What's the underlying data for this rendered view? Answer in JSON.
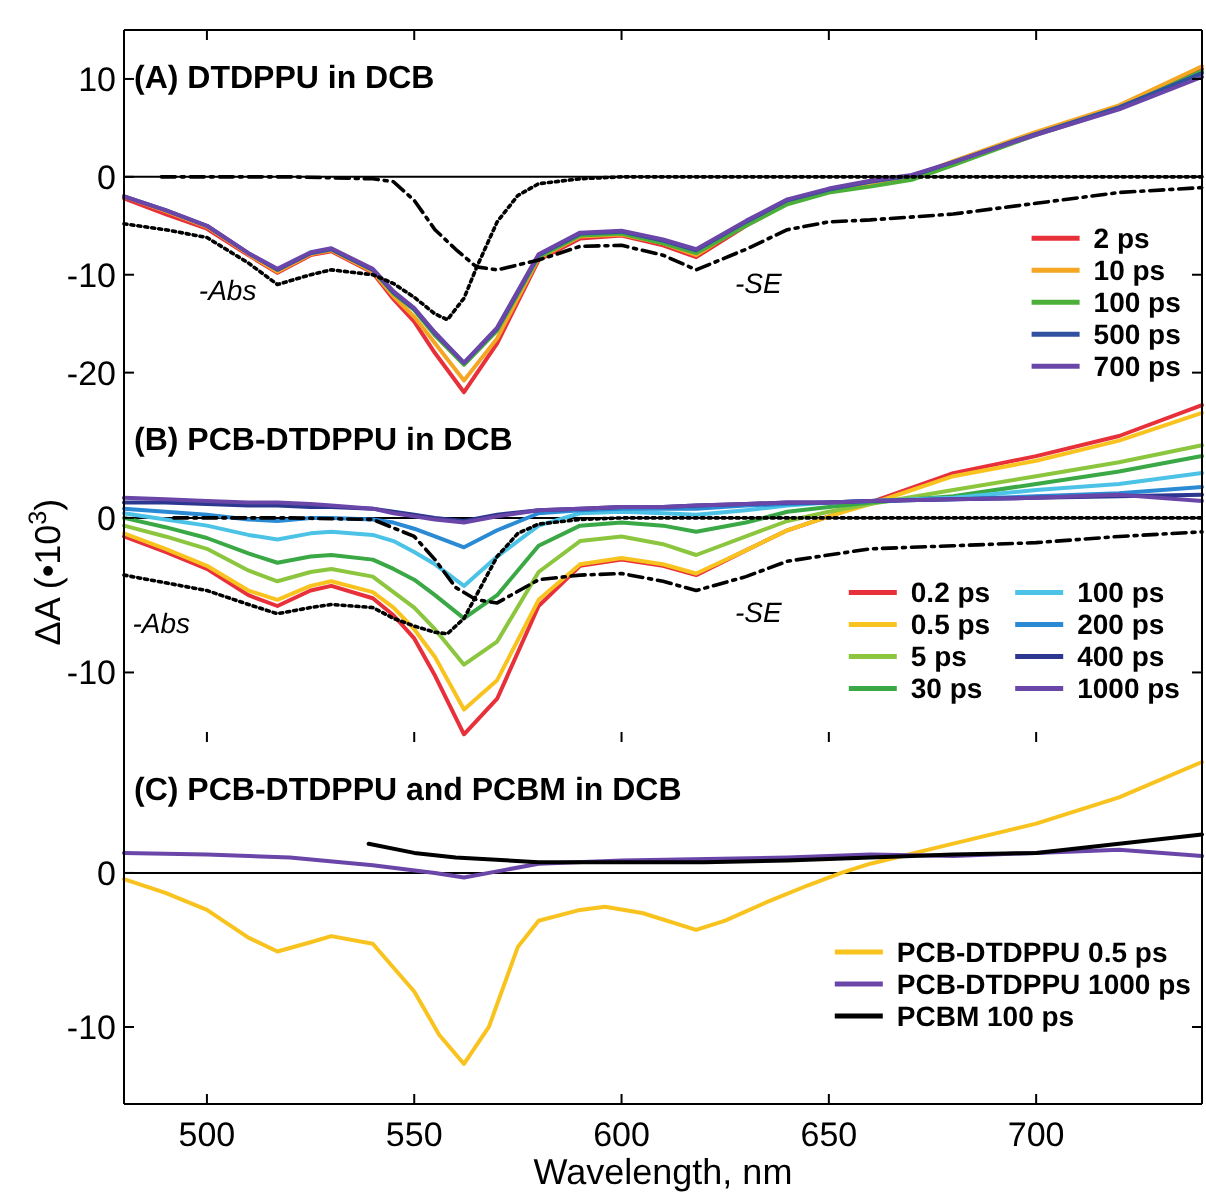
{
  "chart_data": [
    {
      "type": "line",
      "title": "(A) DTDPPU in DCB",
      "x": [
        480,
        490,
        500,
        510,
        517,
        525,
        530,
        540,
        545,
        550,
        555,
        562,
        570,
        580,
        590,
        600,
        610,
        618,
        630,
        640,
        650,
        660,
        670,
        680,
        700,
        720,
        740
      ],
      "xlim": [
        480,
        740
      ],
      "xticks": [
        500,
        550,
        600,
        650,
        700
      ],
      "ylim": [
        -23,
        15
      ],
      "yticks": [
        -20,
        -10,
        0,
        10
      ],
      "tick_labels": "y",
      "grid": false,
      "legend": "right",
      "ref_lines": [
        {
          "axis": "y",
          "value": 0,
          "color": "#000000"
        }
      ],
      "annotations": [
        {
          "text": "-Abs",
          "x": 505,
          "y": -7.5
        },
        {
          "text": "-SE",
          "x": 633,
          "y": -6.8
        }
      ],
      "series": [
        {
          "name": "2 ps",
          "color": "#e8303a",
          "values": [
            -2.2,
            -3.8,
            -5.3,
            -8,
            -9.8,
            -8,
            -7.6,
            -9.8,
            -12.5,
            -14.8,
            -18,
            -22,
            -17,
            -8.5,
            -6.3,
            -6,
            -7,
            -8.2,
            -5,
            -2.7,
            -1.5,
            -0.6,
            0,
            1.5,
            4.5,
            7.2,
            11
          ]
        },
        {
          "name": "10 ps",
          "color": "#f5a623",
          "values": [
            -2,
            -3.5,
            -5.1,
            -7.9,
            -9.7,
            -7.9,
            -7.5,
            -9.7,
            -12.2,
            -14.3,
            -17,
            -20.8,
            -16.5,
            -8.3,
            -6.1,
            -5.9,
            -6.8,
            -8,
            -4.8,
            -2.6,
            -1.4,
            -0.6,
            0,
            1.6,
            4.6,
            7.3,
            11.3
          ]
        },
        {
          "name": "100 ps",
          "color": "#4caf3a",
          "values": [
            null,
            null,
            null,
            null,
            null,
            null,
            -7.4,
            -9.5,
            -11.9,
            -13.6,
            -16.2,
            -19.2,
            -15.7,
            -8.2,
            -6,
            -5.8,
            -6.8,
            -7.8,
            -5,
            -2.8,
            -1.6,
            -1,
            -0.3,
            1.2,
            4.3,
            7,
            10.8
          ]
        },
        {
          "name": "500 ps",
          "color": "#3050a0",
          "values": [
            -2,
            -3.4,
            -5,
            -7.8,
            -9.5,
            -7.8,
            -7.4,
            -9.5,
            -11.8,
            -13.5,
            -16,
            -19,
            -15.5,
            -8,
            -5.8,
            -5.6,
            -6.5,
            -7.5,
            -4.6,
            -2.4,
            -1.3,
            -0.5,
            0.1,
            1.5,
            4.4,
            7.1,
            10.6
          ]
        },
        {
          "name": "700 ps",
          "color": "#6a46a8",
          "values": [
            -2,
            -3.4,
            -5,
            -7.8,
            -9.4,
            -7.7,
            -7.3,
            -9.4,
            -11.7,
            -13.4,
            -15.9,
            -19,
            -15.4,
            -7.9,
            -5.7,
            -5.5,
            -6.4,
            -7.4,
            -4.5,
            -2.3,
            -1.2,
            -0.4,
            0.2,
            1.5,
            4.3,
            6.9,
            10.2
          ]
        },
        {
          "color": "#000000",
          "line_style": "dotted",
          "x": [
            480,
            490,
            500,
            510,
            517,
            525,
            530,
            540,
            545,
            550,
            555,
            558,
            562,
            565,
            570,
            575,
            580,
            590,
            600,
            650,
            700,
            740
          ],
          "values": [
            -4.8,
            -5.4,
            -6.2,
            -8.8,
            -11,
            -10,
            -9.5,
            -10,
            -10.9,
            -12.3,
            -14,
            -14.6,
            -12.4,
            -9.3,
            -4.6,
            -1.9,
            -0.7,
            -0.2,
            0,
            0,
            0,
            0
          ]
        },
        {
          "color": "#000000",
          "line_style": "dashed",
          "x": [
            489,
            500,
            520,
            540,
            545,
            550,
            555,
            560,
            565,
            570,
            580,
            590,
            600,
            610,
            618,
            630,
            640,
            650,
            660,
            680,
            700,
            720,
            740
          ],
          "values": [
            0,
            0,
            0,
            -0.2,
            -0.5,
            -2.4,
            -5.4,
            -7.4,
            -9.2,
            -9.5,
            -8.5,
            -7.1,
            -7,
            -8,
            -9.5,
            -7.4,
            -5.4,
            -4.6,
            -4.4,
            -3.8,
            -2.7,
            -1.6,
            -1.1
          ]
        }
      ]
    },
    {
      "type": "line",
      "title": "(B) PCB-DTDPPU in DCB",
      "ylabel": "ΔA (•10$^{3}$)",
      "x": [
        480,
        490,
        500,
        510,
        517,
        525,
        530,
        540,
        545,
        550,
        555,
        562,
        570,
        580,
        590,
        600,
        610,
        618,
        630,
        640,
        650,
        660,
        680,
        700,
        720,
        740
      ],
      "xlim": [
        480,
        740
      ],
      "xticks": [
        500,
        550,
        600,
        650,
        700
      ],
      "ylim": [
        -14.5,
        7.5
      ],
      "yticks": [
        -10,
        0
      ],
      "tick_labels": "y",
      "grid": false,
      "legend": "right",
      "ref_lines": [
        {
          "axis": "y",
          "value": 0,
          "color": "#000000"
        }
      ],
      "annotations": [
        {
          "text": "-Abs",
          "x": 489,
          "y": -4.2
        },
        {
          "text": "-SE",
          "x": 633,
          "y": -3.5
        }
      ],
      "series": [
        {
          "name": "0.2 ps",
          "color": "#e8303a",
          "values": [
            -1.2,
            -2.2,
            -3.3,
            -5,
            -5.7,
            -4.7,
            -4.4,
            -5.2,
            -6.3,
            -7.8,
            -10.2,
            -14,
            -11.7,
            -5.7,
            -3.1,
            -2.7,
            -3.1,
            -3.7,
            -2.1,
            -0.8,
            0.1,
            1,
            2.9,
            4,
            5.3,
            7.3
          ]
        },
        {
          "name": "0.5 ps",
          "color": "#f9c31f",
          "values": [
            -1,
            -2,
            -3.1,
            -4.7,
            -5.3,
            -4.4,
            -4.1,
            -4.8,
            -5.8,
            -7.2,
            -9,
            -12.4,
            -10.5,
            -5.3,
            -3,
            -2.6,
            -3,
            -3.6,
            -2.1,
            -0.8,
            0.1,
            0.9,
            2.7,
            3.7,
            5,
            6.8
          ]
        },
        {
          "name": "5 ps",
          "color": "#8cc63e",
          "values": [
            -0.5,
            -1.2,
            -2,
            -3.4,
            -4.1,
            -3.5,
            -3.3,
            -3.8,
            -4.8,
            -5.8,
            -7.2,
            -9.5,
            -8,
            -3.5,
            -1.5,
            -1.2,
            -1.7,
            -2.4,
            -1.2,
            -0.2,
            0.4,
            0.9,
            1.8,
            2.7,
            3.6,
            4.7
          ]
        },
        {
          "name": "30 ps",
          "color": "#3aa845",
          "values": [
            0,
            -0.6,
            -1.3,
            -2.3,
            -2.9,
            -2.5,
            -2.4,
            -2.7,
            -3.3,
            -4,
            -5,
            -6.5,
            -5,
            -1.8,
            -0.5,
            -0.3,
            -0.5,
            -0.9,
            -0.3,
            0.4,
            0.7,
            1,
            1.4,
            2.2,
            3,
            4
          ]
        },
        {
          "name": "100 ps",
          "color": "#4cc3e6",
          "values": [
            0.3,
            -0.1,
            -0.5,
            -1.1,
            -1.4,
            -1,
            -0.9,
            -1.1,
            -1.5,
            -2.2,
            -3,
            -4.4,
            -2.5,
            -0.5,
            0.3,
            0.4,
            0.3,
            0.2,
            0.5,
            0.8,
            1,
            1.1,
            1.3,
            1.8,
            2.2,
            2.9
          ]
        },
        {
          "name": "200 ps",
          "color": "#2a8ad4",
          "values": [
            0.6,
            0.4,
            0.2,
            -0.1,
            -0.2,
            0,
            0,
            -0.1,
            -0.3,
            -0.7,
            -1.2,
            -1.9,
            -0.8,
            0.3,
            0.5,
            0.6,
            0.6,
            0.6,
            0.8,
            0.9,
            1,
            1.1,
            1.2,
            1.4,
            1.6,
            2
          ]
        },
        {
          "name": "400 ps",
          "color": "#2c3790",
          "values": [
            1,
            1,
            0.9,
            0.8,
            0.8,
            0.7,
            0.7,
            0.6,
            0.4,
            0.2,
            0,
            -0.2,
            0.2,
            0.5,
            0.6,
            0.7,
            0.7,
            0.8,
            0.9,
            1,
            1,
            1.1,
            1.2,
            1.3,
            1.4,
            1.5
          ]
        },
        {
          "name": "1000 ps",
          "color": "#6a46a8",
          "values": [
            1.3,
            1.2,
            1.1,
            1,
            1,
            0.9,
            0.8,
            0.6,
            0.3,
            0.1,
            -0.1,
            -0.3,
            0.1,
            0.5,
            0.6,
            0.7,
            0.7,
            0.8,
            0.9,
            1,
            1,
            1.1,
            1.2,
            1.3,
            1.5,
            1.1
          ]
        },
        {
          "color": "#000000",
          "line_style": "dotted",
          "x": [
            480,
            500,
            510,
            517,
            525,
            530,
            540,
            545,
            550,
            555,
            558,
            562,
            565,
            570,
            575,
            580,
            590,
            600,
            650,
            700,
            740
          ],
          "values": [
            -3.7,
            -4.7,
            -5.6,
            -6.2,
            -5.8,
            -5.6,
            -5.8,
            -6.5,
            -7,
            -7.4,
            -7.5,
            -6.5,
            -5,
            -2.5,
            -1,
            -0.4,
            -0.1,
            0,
            0,
            0,
            0
          ]
        },
        {
          "color": "#000000",
          "line_style": "dashed",
          "x": [
            492,
            520,
            540,
            550,
            555,
            560,
            565,
            570,
            580,
            590,
            600,
            610,
            618,
            630,
            640,
            660,
            680,
            700,
            720,
            740
          ],
          "values": [
            0,
            0,
            -0.1,
            -1.2,
            -2.7,
            -4.5,
            -5.3,
            -5.5,
            -4,
            -3.7,
            -3.6,
            -4.1,
            -4.7,
            -3.8,
            -2.8,
            -2,
            -1.8,
            -1.6,
            -1.2,
            -0.9
          ]
        }
      ]
    },
    {
      "type": "line",
      "title": "(C) PCB-DTDPPU and PCBM in DCB",
      "xlabel": "Wavelength, nm",
      "xlim": [
        480,
        740
      ],
      "xticks": [
        500,
        550,
        600,
        650,
        700
      ],
      "ylim": [
        -15,
        8.5
      ],
      "yticks": [
        -10,
        0
      ],
      "grid": false,
      "legend": "bottom right",
      "ref_lines": [
        {
          "axis": "y",
          "value": 0,
          "color": "#000000"
        }
      ],
      "series": [
        {
          "name": "PCB-DTDPPU 0.5 ps",
          "color": "#f9c31f",
          "x": [
            480,
            490,
            500,
            510,
            517,
            525,
            530,
            540,
            550,
            556,
            562,
            568,
            575,
            580,
            590,
            596,
            605,
            618,
            625,
            635,
            645,
            653,
            660,
            680,
            700,
            720,
            740
          ],
          "values": [
            -0.4,
            -1.3,
            -2.4,
            -4.2,
            -5.1,
            -4.5,
            -4.1,
            -4.6,
            -7.7,
            -10.5,
            -12.4,
            -10,
            -4.8,
            -3.1,
            -2.4,
            -2.2,
            -2.6,
            -3.7,
            -3.1,
            -1.9,
            -0.8,
            0,
            0.6,
            1.9,
            3.2,
            4.9,
            7.2
          ]
        },
        {
          "name": "PCB-DTDPPU 1000 ps",
          "color": "#6a46a8",
          "x": [
            480,
            500,
            520,
            540,
            555,
            562,
            570,
            580,
            600,
            640,
            660,
            680,
            700,
            720,
            740
          ],
          "values": [
            1.3,
            1.2,
            1,
            0.5,
            0,
            -0.3,
            0.1,
            0.6,
            0.8,
            1,
            1.2,
            1.1,
            1.3,
            1.5,
            1.1
          ]
        },
        {
          "name": "PCBM 100 ps",
          "color": "#000000",
          "x": [
            539,
            550,
            560,
            580,
            600,
            620,
            640,
            660,
            680,
            700,
            720,
            740
          ],
          "values": [
            1.9,
            1.3,
            1,
            0.7,
            0.7,
            0.7,
            0.8,
            1,
            1.2,
            1.3,
            1.9,
            2.5
          ]
        }
      ]
    }
  ]
}
